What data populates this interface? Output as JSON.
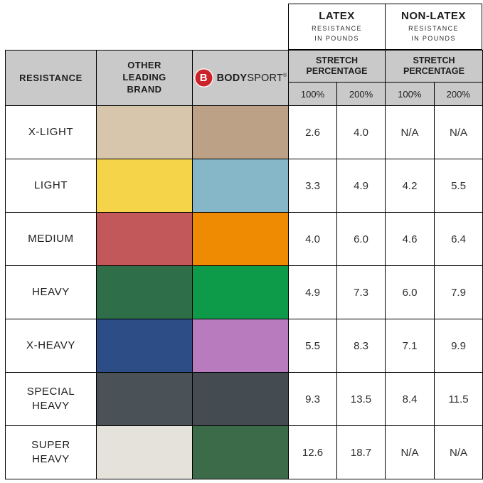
{
  "colors": {
    "table_border": "#000000",
    "header_bg": "#c9c9c9",
    "logo_red": "#cc2229"
  },
  "latex_header": {
    "title": "LATEX",
    "subtitle": "RESISTANCE\nIN POUNDS"
  },
  "nonlatex_header": {
    "title": "NON-LATEX",
    "subtitle": "RESISTANCE\nIN POUNDS"
  },
  "header": {
    "resistance": "RESISTANCE",
    "other_brand": "OTHER\nLEADING\nBRAND",
    "stretch_label": "STRETCH\nPERCENTAGE",
    "col_100": "100%",
    "col_200": "200%"
  },
  "brand": {
    "initial": "B",
    "bold": "BODY",
    "regular": "SPORT",
    "reg_mark": "®"
  },
  "chart_data": {
    "type": "table",
    "column_groups": [
      "LATEX RESISTANCE IN POUNDS",
      "NON-LATEX RESISTANCE IN POUNDS"
    ],
    "columns": [
      "RESISTANCE",
      "OTHER LEADING BRAND",
      "BODY SPORT",
      "LATEX STRETCH 100%",
      "LATEX STRETCH 200%",
      "NON-LATEX STRETCH 100%",
      "NON-LATEX STRETCH 200%"
    ],
    "rows": [
      {
        "label": "X-LIGHT",
        "other_brand_color": "#d8c6ac",
        "body_sport_color": "#bda186",
        "latex_100": "2.6",
        "latex_200": "4.0",
        "nonlatex_100": "N/A",
        "nonlatex_200": "N/A"
      },
      {
        "label": "LIGHT",
        "other_brand_color": "#f6d44a",
        "body_sport_color": "#85b7c9",
        "latex_100": "3.3",
        "latex_200": "4.9",
        "nonlatex_100": "4.2",
        "nonlatex_200": "5.5"
      },
      {
        "label": "MEDIUM",
        "other_brand_color": "#c25859",
        "body_sport_color": "#ef8b03",
        "latex_100": "4.0",
        "latex_200": "6.0",
        "nonlatex_100": "4.6",
        "nonlatex_200": "6.4"
      },
      {
        "label": "HEAVY",
        "other_brand_color": "#2e6e48",
        "body_sport_color": "#0d9b49",
        "latex_100": "4.9",
        "latex_200": "7.3",
        "nonlatex_100": "6.0",
        "nonlatex_200": "7.9"
      },
      {
        "label": "X-HEAVY",
        "other_brand_color": "#2c4d86",
        "body_sport_color": "#b87cbe",
        "latex_100": "5.5",
        "latex_200": "8.3",
        "nonlatex_100": "7.1",
        "nonlatex_200": "9.9"
      },
      {
        "label": "SPECIAL\nHEAVY",
        "other_brand_color": "#4b5257",
        "body_sport_color": "#454c51",
        "latex_100": "9.3",
        "latex_200": "13.5",
        "nonlatex_100": "8.4",
        "nonlatex_200": "11.5"
      },
      {
        "label": "SUPER\nHEAVY",
        "other_brand_color": "#e4e2db",
        "body_sport_color": "#3c6b4a",
        "latex_100": "12.6",
        "latex_200": "18.7",
        "nonlatex_100": "N/A",
        "nonlatex_200": "N/A"
      }
    ]
  }
}
